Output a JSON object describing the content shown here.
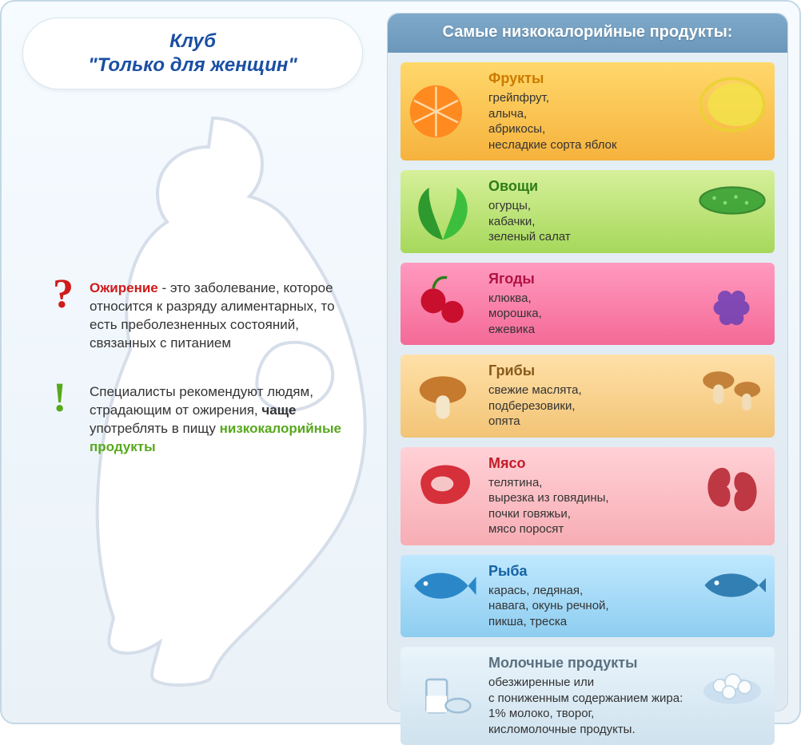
{
  "title_line1": "Клуб",
  "title_line2": "\"Только для женщин\"",
  "title_color": "#1a4fa3",
  "background_gradient": [
    "#f6fbff",
    "#eaf2f8"
  ],
  "right_panel_heading": "Самые низкокалорийные продукты:",
  "right_panel_heading_bg": "#6b97ba",
  "silhouette_color": "#ffffff",
  "silhouette_outline": "#d6deea",
  "info": [
    {
      "mark": "?",
      "mark_color": "#d11a1a",
      "highlight_word": "Ожирение",
      "highlight_class": "red",
      "rest": " - это заболевание, которое относится к разряду алиментарных, то есть преболезненных состояний, связанных с питанием"
    },
    {
      "mark": "!",
      "mark_color": "#57a81c",
      "before": "Специалисты рекомендуют людям, страдающим от ожирения, ",
      "bold": "чаще",
      "mid": " употреблять в пищу ",
      "green": "низкокалорийные продукты"
    }
  ],
  "cards": [
    {
      "title": "Фрукты",
      "title_color": "#cc7a00",
      "text": "грейпфрут,\nалыча,\nабрикосы,\nнесладкие сорта яблок",
      "bg_gradient": [
        "#ffd86b",
        "#f6b23d"
      ],
      "icon": "orange",
      "decor": "lemon"
    },
    {
      "title": "Овощи",
      "title_color": "#2e7d17",
      "text": "огурцы,\nкабачки,\nзеленый салат",
      "bg_gradient": [
        "#d6f09a",
        "#a6d85b"
      ],
      "icon": "lettuce",
      "decor": "cucumber"
    },
    {
      "title": "Ягоды",
      "title_color": "#b11242",
      "text": "клюква,\nморошка,\nежевика",
      "bg_gradient": [
        "#ff9abf",
        "#f46a97"
      ],
      "icon": "cranberry",
      "decor": "blackberry"
    },
    {
      "title": "Грибы",
      "title_color": "#8a5a1a",
      "text": "свежие маслята,\nподберезовики,\nопята",
      "bg_gradient": [
        "#ffe0a8",
        "#f2c476"
      ],
      "icon": "mushroom",
      "decor": "mushrooms"
    },
    {
      "title": "Мясо",
      "title_color": "#c21d2b",
      "text": "телятина,\nвырезка из говядины,\nпочки говяжьи,\nмясо поросят",
      "bg_gradient": [
        "#ffd1d6",
        "#f7adb4"
      ],
      "icon": "steak",
      "decor": "kidneys"
    },
    {
      "title": "Рыба",
      "title_color": "#1463a3",
      "text": "карась, ледяная,\nнавага, окунь речной,\nпикша, треска",
      "bg_gradient": [
        "#bfe8ff",
        "#8ecdf0"
      ],
      "icon": "fish",
      "decor": "fish2"
    },
    {
      "title": "Молочные продукты",
      "title_color": "#5a7080",
      "text": "обезжиренные или\nс пониженным содержанием жира:\n1% молоко, творог,\nкисломолочные продукты.",
      "bg_gradient": [
        "#e9f4fb",
        "#cfe2ee"
      ],
      "icon": "milk",
      "decor": "curd"
    }
  ]
}
